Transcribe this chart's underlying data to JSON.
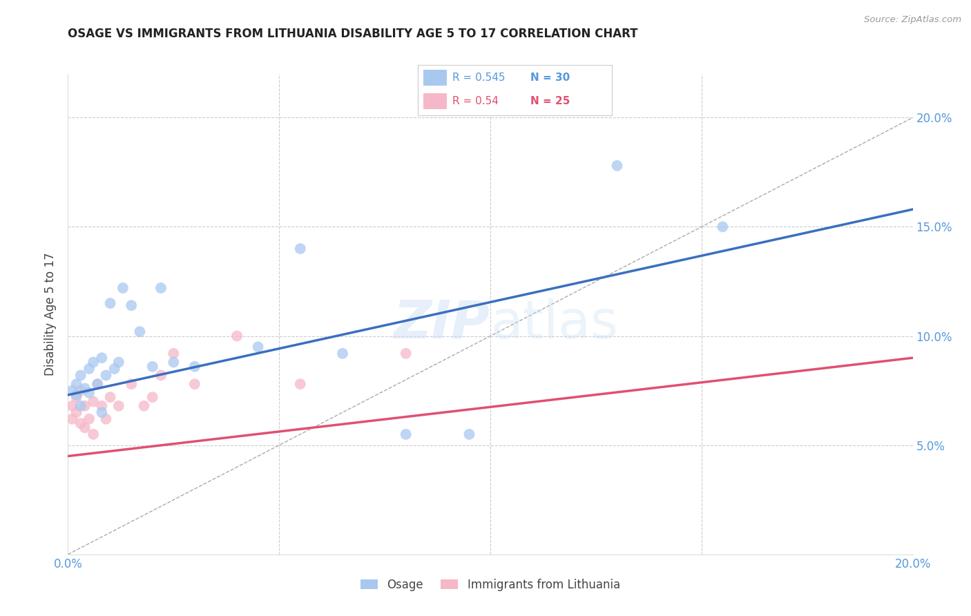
{
  "title": "OSAGE VS IMMIGRANTS FROM LITHUANIA DISABILITY AGE 5 TO 17 CORRELATION CHART",
  "source": "Source: ZipAtlas.com",
  "ylabel": "Disability Age 5 to 17",
  "xlim": [
    0,
    0.2
  ],
  "ylim": [
    0,
    0.22
  ],
  "osage_R": 0.545,
  "osage_N": 30,
  "lith_R": 0.54,
  "lith_N": 25,
  "osage_color": "#a8c8f0",
  "lith_color": "#f5b8c8",
  "osage_line_color": "#3a6fbf",
  "lith_line_color": "#e05070",
  "osage_x": [
    0.001,
    0.002,
    0.002,
    0.003,
    0.003,
    0.004,
    0.005,
    0.005,
    0.006,
    0.007,
    0.008,
    0.008,
    0.009,
    0.01,
    0.011,
    0.012,
    0.013,
    0.015,
    0.017,
    0.02,
    0.022,
    0.025,
    0.03,
    0.045,
    0.055,
    0.065,
    0.08,
    0.095,
    0.13,
    0.155
  ],
  "osage_y": [
    0.075,
    0.078,
    0.073,
    0.082,
    0.068,
    0.076,
    0.085,
    0.074,
    0.088,
    0.078,
    0.09,
    0.065,
    0.082,
    0.115,
    0.085,
    0.088,
    0.122,
    0.114,
    0.102,
    0.086,
    0.122,
    0.088,
    0.086,
    0.095,
    0.14,
    0.092,
    0.055,
    0.055,
    0.178,
    0.15
  ],
  "lith_x": [
    0.001,
    0.001,
    0.002,
    0.002,
    0.003,
    0.003,
    0.004,
    0.004,
    0.005,
    0.006,
    0.006,
    0.007,
    0.008,
    0.009,
    0.01,
    0.012,
    0.015,
    0.018,
    0.02,
    0.022,
    0.025,
    0.03,
    0.04,
    0.055,
    0.08
  ],
  "lith_y": [
    0.062,
    0.068,
    0.065,
    0.072,
    0.06,
    0.075,
    0.058,
    0.068,
    0.062,
    0.07,
    0.055,
    0.078,
    0.068,
    0.062,
    0.072,
    0.068,
    0.078,
    0.068,
    0.072,
    0.082,
    0.092,
    0.078,
    0.1,
    0.078,
    0.092
  ],
  "watermark_zip": "ZIP",
  "watermark_atlas": "atlas",
  "background_color": "#ffffff"
}
